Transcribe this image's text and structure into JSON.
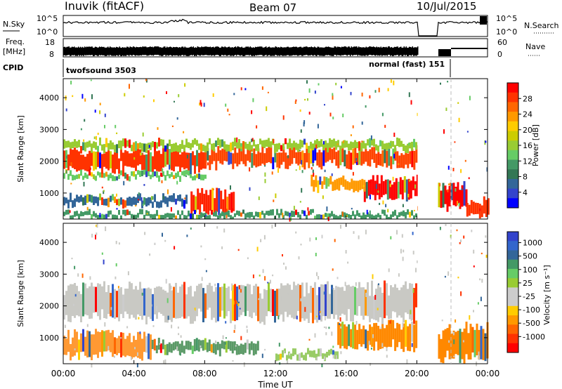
{
  "header": {
    "station": "Inuvik (fitACF)",
    "beam": "Beam 07",
    "date": "10/Jul/2015"
  },
  "status_panels": {
    "nsky_label": "N.Sky",
    "nsky_ticks": [
      "10^5",
      "10^0"
    ],
    "nsearch_label": "N.Search",
    "nsearch_ticks": [
      "10^5",
      "10^0"
    ],
    "freq_label_line1": "Freq.",
    "freq_label_line2": "[MHz]",
    "freq_ticks": [
      "18",
      "8"
    ],
    "nave_label": "Nave",
    "nave_ticks": [
      "60",
      "0"
    ],
    "cpid_label": "CPID",
    "cpid_modes": [
      {
        "text": "twofsound 3503"
      },
      {
        "text": "normal (fast) 151"
      }
    ]
  },
  "x_axis": {
    "label": "Time UT",
    "ticks": [
      "00:00",
      "04:00",
      "08:00",
      "12:00",
      "16:00",
      "20:00",
      "00:00"
    ],
    "range_hours": [
      0,
      24
    ]
  },
  "chart_data": [
    {
      "type": "heatmap",
      "quantity": "Power",
      "ylabel": "Slant Range [km]",
      "yticks": [
        "4000",
        "3000",
        "2000",
        "1000"
      ],
      "ylim": [
        180,
        4600
      ],
      "colorbar": {
        "title": "Power [dB]",
        "ticks": [
          "28",
          "24",
          "20",
          "16",
          "12",
          "8",
          "4"
        ],
        "colors_top_to_bottom": [
          "#ff0000",
          "#ff3300",
          "#ff6600",
          "#ff9900",
          "#ffcc00",
          "#cccc00",
          "#99cc33",
          "#66cc66",
          "#449966",
          "#337755",
          "#336699",
          "#3344cc",
          "#0000ff"
        ]
      },
      "bands": [
        {
          "t0": 0.0,
          "t1": 8.0,
          "r0": 1650,
          "r1": 2350,
          "color": "#ff3300"
        },
        {
          "t0": 8.0,
          "t1": 20.0,
          "r0": 1800,
          "r1": 2400,
          "color": "#ff4400"
        },
        {
          "t0": 0.0,
          "t1": 20.0,
          "r0": 2350,
          "r1": 2650,
          "color": "#99cc33"
        },
        {
          "t0": 0.0,
          "t1": 8.0,
          "r0": 1450,
          "r1": 1650,
          "color": "#66cc66"
        },
        {
          "t0": 7.2,
          "t1": 9.6,
          "r0": 250,
          "r1": 1100,
          "color": "#ff2200"
        },
        {
          "t0": 17.0,
          "t1": 20.0,
          "r0": 800,
          "r1": 1500,
          "color": "#ff0000"
        },
        {
          "t0": 14.0,
          "t1": 17.0,
          "r0": 1100,
          "r1": 1500,
          "color": "#ff9900"
        },
        {
          "t0": 21.2,
          "t1": 22.8,
          "r0": 500,
          "r1": 1300,
          "color": "#ff0000"
        },
        {
          "t0": 22.8,
          "t1": 24.0,
          "r0": 250,
          "r1": 800,
          "color": "#ff3300"
        },
        {
          "t0": 0.0,
          "t1": 7.0,
          "r0": 600,
          "r1": 900,
          "color": "#336699"
        },
        {
          "t0": 0.0,
          "t1": 20.0,
          "r0": 200,
          "r1": 400,
          "color": "#449966"
        }
      ]
    },
    {
      "type": "heatmap",
      "quantity": "Velocity",
      "ylabel": "Slant Range [km]",
      "yticks": [
        "4000",
        "3000",
        "2000",
        "1000"
      ],
      "ylim": [
        180,
        4600
      ],
      "colorbar": {
        "title": "Velocity [m s⁻¹]",
        "ticks": [
          "1000",
          "500",
          "100",
          "25",
          "-25",
          "-100",
          "-500",
          "-1000"
        ],
        "colors_top_to_bottom": [
          "#3344cc",
          "#3366cc",
          "#336699",
          "#449966",
          "#66cc66",
          "#99cc33",
          "#cccccc",
          "#cccccc",
          "#ffcc00",
          "#ff9900",
          "#ff6600",
          "#ff3300",
          "#ff0000"
        ]
      },
      "bands": [
        {
          "t0": 0.0,
          "t1": 20.0,
          "r0": 1500,
          "r1": 2700,
          "color": "#c9c9c4"
        },
        {
          "t0": 0.0,
          "t1": 5.0,
          "r0": 350,
          "r1": 1200,
          "color": "#ff9933"
        },
        {
          "t0": 5.0,
          "t1": 11.0,
          "r0": 500,
          "r1": 900,
          "color": "#5a9966"
        },
        {
          "t0": 15.5,
          "t1": 20.0,
          "r0": 600,
          "r1": 1500,
          "color": "#ff8800"
        },
        {
          "t0": 12.0,
          "t1": 15.5,
          "r0": 350,
          "r1": 600,
          "color": "#99cc66"
        },
        {
          "t0": 21.2,
          "t1": 24.0,
          "r0": 250,
          "r1": 1400,
          "color": "#ff8800"
        }
      ]
    }
  ]
}
